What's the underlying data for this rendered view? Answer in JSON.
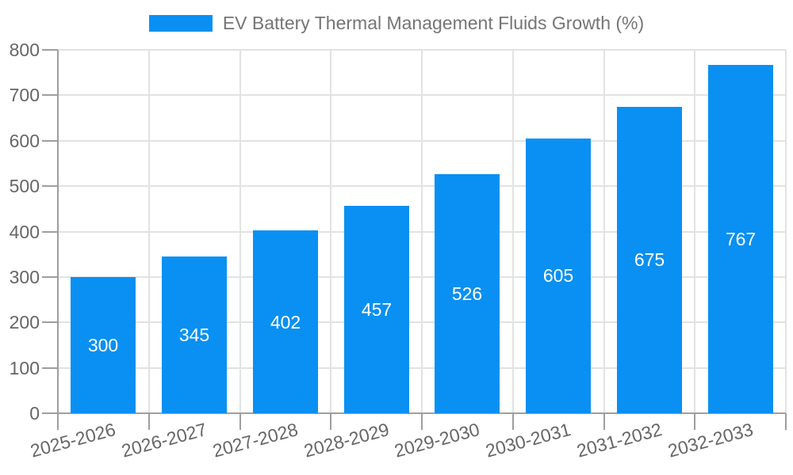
{
  "colors": {
    "bar": "#0990F2",
    "grid": "#E2E2E2",
    "axis_line": "#9E9E9E",
    "axis_text": "#666666",
    "legend_text": "#757575",
    "bar_label_text": "#FFFFFF",
    "background": "#FFFFFF"
  },
  "legend": {
    "series_label": "EV Battery Thermal Management Fluids Growth (%)"
  },
  "chart_data": {
    "type": "bar",
    "title": "EV Battery Thermal Management Fluids Growth (%)",
    "categories": [
      "2025-2026",
      "2026-2027",
      "2027-2028",
      "2028-2029",
      "2029-2030",
      "2030-2031",
      "2031-2032",
      "2032-2033"
    ],
    "values": [
      300,
      345,
      402,
      457,
      526,
      605,
      675,
      767
    ],
    "series": [
      {
        "name": "EV Battery Thermal Management Fluids Growth (%)",
        "values": [
          300,
          345,
          402,
          457,
          526,
          605,
          675,
          767
        ]
      }
    ],
    "xlabel": "",
    "ylabel": "",
    "ylim": [
      0,
      800
    ],
    "ytick_step": 100,
    "yticks": [
      0,
      100,
      200,
      300,
      400,
      500,
      600,
      700,
      800
    ],
    "grid": true,
    "legend_position": "top",
    "bar_value_labels": "inside-center",
    "x_tick_rotation_deg": -15
  }
}
